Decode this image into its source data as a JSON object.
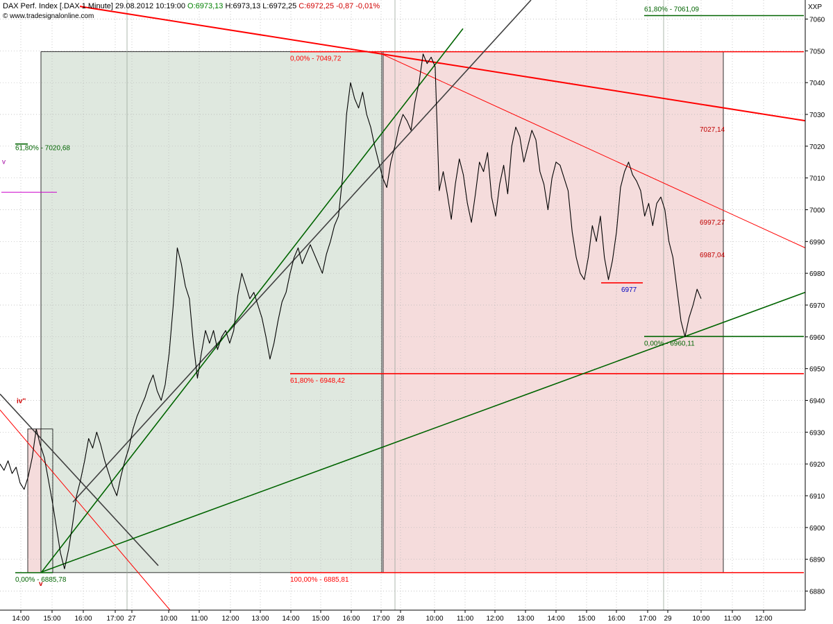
{
  "header": {
    "instrument": "DAX Perf. Index [.DAX  1 Minute]",
    "datetime": "29.08.2012 10:19:00",
    "open": "O:6973,13",
    "high": "H:6973,13",
    "low": "L:6972,25",
    "close": "C:6972,25 -0,87 -0,01%",
    "website": "www.tradesignalonline.com"
  },
  "chart_data": {
    "type": "line",
    "symbol": "XXP",
    "ylim": [
      6874,
      7066
    ],
    "y_ticks": [
      6880,
      6890,
      6900,
      6910,
      6920,
      6930,
      6940,
      6950,
      6960,
      6970,
      6980,
      6990,
      7000,
      7010,
      7020,
      7030,
      7040,
      7050,
      7060
    ],
    "x_ticks": [
      "14:00",
      "15:00",
      "16:00",
      "17:00",
      "27",
      "10:00",
      "11:00",
      "12:00",
      "13:00",
      "14:00",
      "15:00",
      "16:00",
      "17:00",
      "28",
      "10:00",
      "11:00",
      "12:00",
      "13:00",
      "14:00",
      "15:00",
      "16:00",
      "17:00",
      "29",
      "10:00",
      "11:00",
      "12:00"
    ],
    "series": [
      {
        "values": [
          6920,
          6918,
          6921,
          6917,
          6919,
          6914,
          6912,
          6916,
          6922,
          6931,
          6926,
          6922,
          6915,
          6908,
          6900,
          6892,
          6887,
          6893,
          6901,
          6910,
          6915,
          6921,
          6928,
          6925,
          6930,
          6926,
          6921,
          6917,
          6913,
          6910,
          6916,
          6921,
          6925,
          6931,
          6935,
          6938,
          6941,
          6945,
          6948,
          6943,
          6940,
          6945,
          6955,
          6970,
          6988,
          6983,
          6976,
          6972,
          6958,
          6947,
          6955,
          6962,
          6958,
          6962,
          6956,
          6960,
          6962,
          6958,
          6962,
          6973,
          6980,
          6976,
          6972,
          6974,
          6970,
          6966,
          6960,
          6953,
          6958,
          6965,
          6971,
          6974,
          6980,
          6985,
          6988,
          6983,
          6986,
          6989,
          6986,
          6983,
          6980,
          6986,
          6990,
          6995,
          6998,
          7010,
          7030,
          7040,
          7035,
          7032,
          7037,
          7030,
          7026,
          7020,
          7015,
          7010,
          7007,
          7015,
          7020,
          7026,
          7030,
          7028,
          7025,
          7034,
          7040,
          7049,
          7046,
          7048,
          7045,
          7006,
          7012,
          7005,
          6997,
          7008,
          7016,
          7011,
          7002,
          6996,
          7005,
          7015,
          7012,
          7018,
          7004,
          6998,
          7008,
          7014,
          7005,
          7020,
          7026,
          7023,
          7015,
          7020,
          7025,
          7022,
          7012,
          7008,
          7000,
          7010,
          7015,
          7014,
          7010,
          7006,
          6993,
          6985,
          6980,
          6978,
          6985,
          6995,
          6990,
          6998,
          6985,
          6978,
          6984,
          6993,
          7007,
          7012,
          7015,
          7011,
          7009,
          7006,
          6998,
          7002,
          6995,
          7002,
          7004,
          7000,
          6990,
          6985,
          6975,
          6965,
          6960,
          6966,
          6970,
          6975,
          6972
        ]
      }
    ],
    "horizontal_levels": [
      {
        "value": 7061.09,
        "label": "61,80% - 7061,09",
        "color": "#006400"
      },
      {
        "value": 7049.72,
        "label": "0,00% - 7049,72",
        "color": "#ff0000"
      },
      {
        "value": 7020.68,
        "label": "61,80% - 7020,68",
        "color": "#006400"
      },
      {
        "value": 6960.11,
        "label": "0,00% - 6960,11",
        "color": "#006400"
      },
      {
        "value": 6948.42,
        "label": "61,80% - 6948,42",
        "color": "#ff0000"
      },
      {
        "value": 6885.81,
        "label": "100,00% - 6885,81",
        "color": "#ff0000"
      },
      {
        "value": 6885.78,
        "label": "0,00% - 6885,78",
        "color": "#006400"
      }
    ],
    "annotations": [
      {
        "text": "7027,14",
        "color": "#c00000"
      },
      {
        "text": "6997,27",
        "color": "#c00000"
      },
      {
        "text": "6987,04",
        "color": "#c00000"
      },
      {
        "text": "6977",
        "color": "#0000c0"
      },
      {
        "text": "iv''",
        "color": "#d00000"
      },
      {
        "text": "v",
        "color": "#d00000"
      },
      {
        "text": "v",
        "color": "#a000a0"
      }
    ],
    "colors": {
      "price": "#000000",
      "support": "#006400",
      "resistance": "#ff0000",
      "trend_grey": "#404040",
      "zone_green": "#dfe8df",
      "zone_red": "#f5dcdc",
      "grid": "#b4b4b4"
    },
    "grid": true
  }
}
